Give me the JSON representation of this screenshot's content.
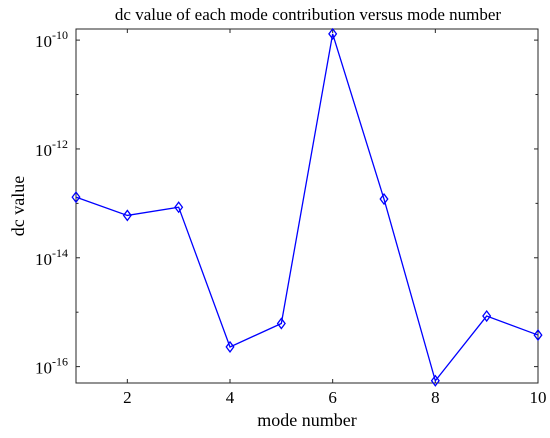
{
  "chart_data": {
    "type": "line",
    "title": "dc value of each mode contribution versus mode number",
    "xlabel": "mode number",
    "ylabel": "dc value",
    "x": [
      1,
      2,
      3,
      4,
      5,
      6,
      7,
      8,
      9,
      10
    ],
    "series": [
      {
        "values": [
          1.3e-13,
          6e-14,
          8.5e-14,
          2.3e-16,
          6.2e-16,
          1.3e-10,
          1.2e-13,
          5.5e-17,
          8.5e-16,
          3.8e-16
        ],
        "color": "#0000ff",
        "marker": "diamond"
      }
    ],
    "xlim": [
      1,
      10
    ],
    "ylim": [
      5e-17,
      1.6e-10
    ],
    "y_scale": "log",
    "xticks": [
      2,
      4,
      6,
      8,
      10
    ],
    "xtick_labels": [
      "2",
      "4",
      "6",
      "8",
      "10"
    ],
    "yticks": [
      1e-16,
      1e-14,
      1e-12,
      1e-10
    ],
    "ytick_labels": [
      {
        "base": "10",
        "exp": "-16"
      },
      {
        "base": "10",
        "exp": "-14"
      },
      {
        "base": "10",
        "exp": "-12"
      },
      {
        "base": "10",
        "exp": "-10"
      }
    ],
    "grid": false,
    "legend": "none"
  }
}
